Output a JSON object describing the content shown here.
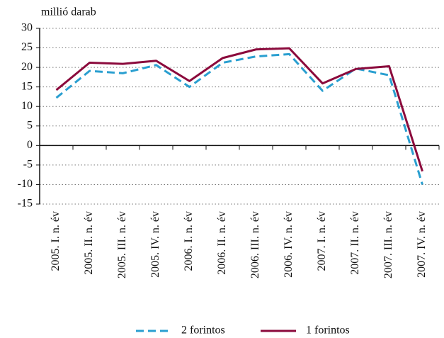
{
  "chart_data": {
    "type": "line",
    "y_axis_label": "millió darab",
    "categories": [
      "2005. I. n. év",
      "2005. II. n. év",
      "2005. III. n. év",
      "2005. IV. n. év",
      "2006. I. n. év",
      "2006. II. n. év",
      "2006. III. n. év",
      "2006. IV. n. év",
      "2007. I. n. év",
      "2007. II. n. év",
      "2007. III. n. év",
      "2007. IV. n. év"
    ],
    "series": [
      {
        "name": "2 forintos",
        "color": "#2a9fd0",
        "line_style": "dashed",
        "values": [
          12.2,
          19.1,
          18.5,
          20.6,
          15.0,
          21.2,
          22.8,
          23.4,
          14.0,
          19.7,
          18.0,
          -10.0
        ]
      },
      {
        "name": "1 forintos",
        "color": "#8b0a3c",
        "line_style": "solid",
        "values": [
          14.2,
          21.2,
          20.9,
          21.7,
          16.5,
          22.4,
          24.6,
          24.9,
          15.9,
          19.6,
          20.3,
          -6.6
        ]
      }
    ],
    "ylim": [
      -15,
      30
    ],
    "yticks": [
      -15,
      -10,
      -5,
      0,
      5,
      10,
      15,
      20,
      25,
      30
    ],
    "grid": true,
    "legend": "bottom"
  }
}
